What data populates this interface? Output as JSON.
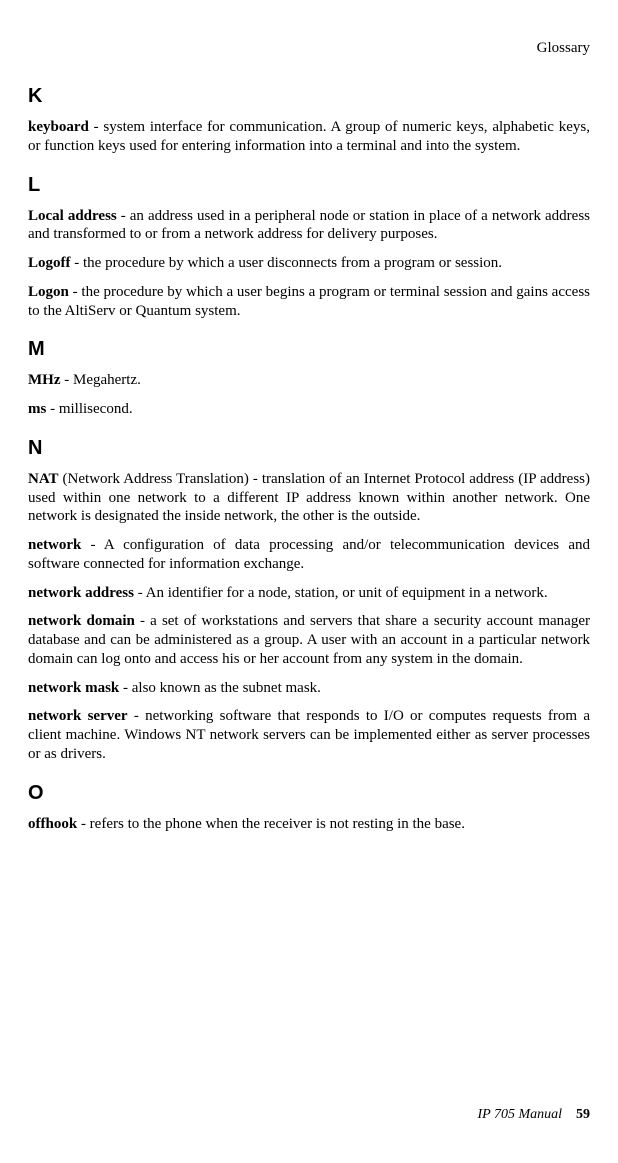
{
  "header": {
    "title": "Glossary"
  },
  "sections": {
    "K": {
      "letter": "K",
      "entries": {
        "keyboard": {
          "term": "keyboard",
          "def": " - system interface for communication. A group of numeric keys, alphabetic keys, or function keys used for entering information into a terminal and into the system."
        }
      }
    },
    "L": {
      "letter": "L",
      "entries": {
        "local_address": {
          "term": "Local address",
          "def": " - an address used in a peripheral node or station in place of a network address and transformed to or from a network address for delivery purposes."
        },
        "logoff": {
          "term": "Logoff",
          "def": " - the procedure by which a user disconnects from a program or session."
        },
        "logon": {
          "term": "Logon",
          "def": " - the procedure by which a user begins a program or terminal session and gains access to the AltiServ or Quantum system."
        }
      }
    },
    "M": {
      "letter": "M",
      "entries": {
        "mhz": {
          "term": "MHz",
          "def": " - Megahertz."
        },
        "ms": {
          "term": "ms",
          "def": " - millisecond."
        }
      }
    },
    "N": {
      "letter": "N",
      "entries": {
        "nat": {
          "term": "NAT",
          "def": " (Network Address Translation) - translation of an Internet Protocol address (IP address) used within one network to a different IP address known within another network. One network is designated the inside network, the other is the outside."
        },
        "network": {
          "term": "network",
          "def": " - A configuration of data processing and/or telecommunication devices and software connected for information exchange."
        },
        "network_address": {
          "term": "network address",
          "def": " - An identifier for a node, station, or unit of equipment in a network."
        },
        "network_domain": {
          "term": "network domain",
          "def": " - a set of workstations and servers that share a security account manager database and can be administered as a group. A user with an account in a particular network domain can log onto and access his or her account from any system in the domain."
        },
        "network_mask": {
          "term": "network mask",
          "def": " - also known as the subnet mask."
        },
        "network_server": {
          "term": "network server",
          "def": " - networking software that responds to I/O or computes requests from a client machine. Windows NT network servers can be implemented either as server processes or as drivers."
        }
      }
    },
    "O": {
      "letter": "O",
      "entries": {
        "offhook": {
          "term": "offhook",
          "def": " - refers to the phone when the receiver is not resting in the base."
        }
      }
    }
  },
  "footer": {
    "manual": "IP 705 Manual",
    "page": "59"
  }
}
